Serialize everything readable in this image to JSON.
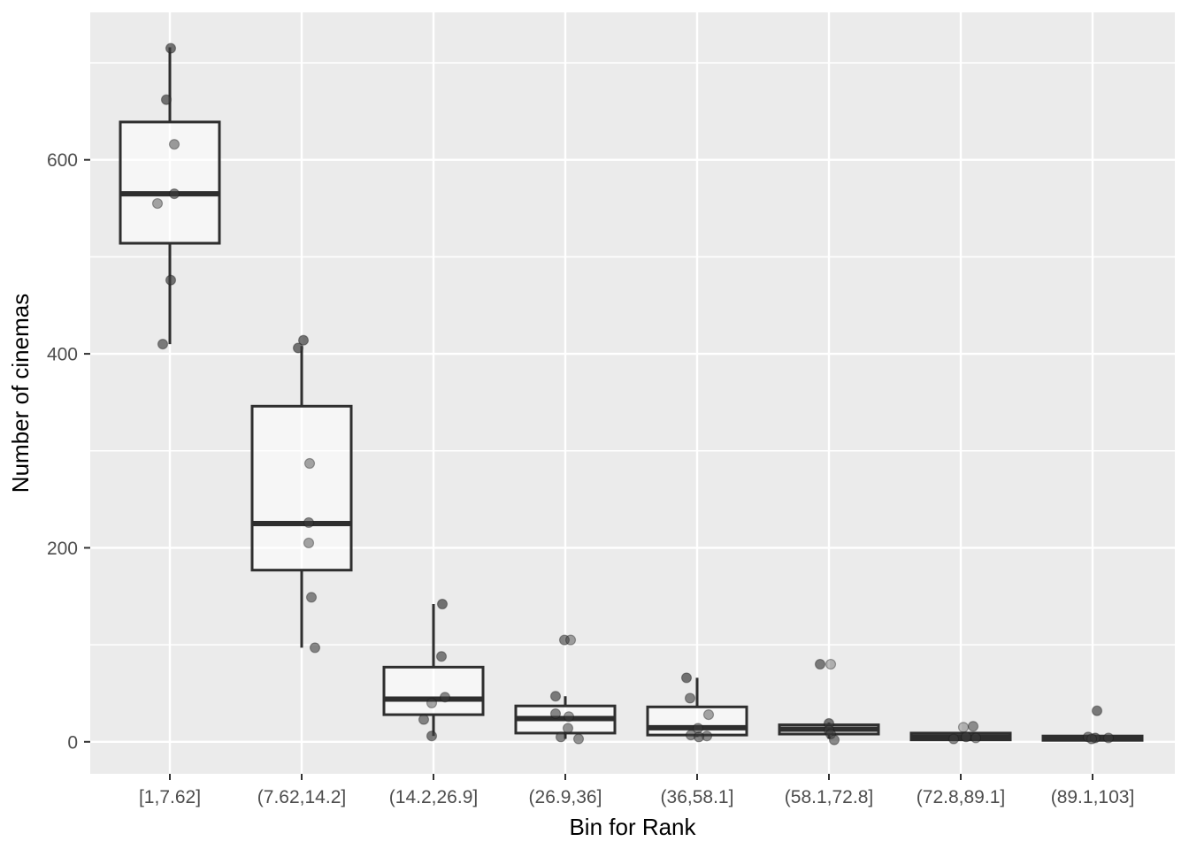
{
  "chart_data": {
    "type": "boxplot",
    "title": "",
    "xlabel": "Bin for Rank",
    "ylabel": "Number of cinemas",
    "categories": [
      "[1,7.62]",
      "(7.62,14.2]",
      "(14.2,26.9]",
      "(26.9,36]",
      "(36,58.1]",
      "(58.1,72.8]",
      "(72.8,89.1]",
      "(89.1,103]"
    ],
    "y_major_ticks": [
      0,
      200,
      400,
      600
    ],
    "y_minor_ticks": [
      100,
      300,
      500,
      700
    ],
    "ylim": [
      -33,
      752
    ],
    "grid": true,
    "legend": false,
    "boxes": [
      {
        "category": "[1,7.62]",
        "whisker_low": 410,
        "q1": 514,
        "median": 565,
        "q3": 639,
        "whisker_high": 716,
        "points": [
          {
            "v": 715,
            "dx": 1,
            "a": 0.7
          },
          {
            "v": 662,
            "dx": -4,
            "a": 0.7
          },
          {
            "v": 616,
            "dx": 5,
            "a": 0.5
          },
          {
            "v": 565,
            "dx": 5,
            "a": 0.65
          },
          {
            "v": 555,
            "dx": -14,
            "a": 0.45
          },
          {
            "v": 476,
            "dx": 1,
            "a": 0.7
          },
          {
            "v": 410,
            "dx": -8,
            "a": 0.65
          }
        ]
      },
      {
        "category": "(7.62,14.2]",
        "whisker_low": 97,
        "q1": 177,
        "median": 225,
        "q3": 346,
        "whisker_high": 408,
        "points": [
          {
            "v": 414,
            "dx": 2,
            "a": 0.7
          },
          {
            "v": 406,
            "dx": -4,
            "a": 0.7
          },
          {
            "v": 287,
            "dx": 9,
            "a": 0.45
          },
          {
            "v": 226,
            "dx": 8,
            "a": 0.6
          },
          {
            "v": 205,
            "dx": 8,
            "a": 0.45
          },
          {
            "v": 149,
            "dx": 11,
            "a": 0.6
          },
          {
            "v": 97,
            "dx": 15,
            "a": 0.6
          }
        ]
      },
      {
        "category": "(14.2,26.9]",
        "whisker_low": 6,
        "q1": 28,
        "median": 44,
        "q3": 77,
        "whisker_high": 142,
        "points": [
          {
            "v": 142,
            "dx": 10,
            "a": 0.7
          },
          {
            "v": 88,
            "dx": 9,
            "a": 0.65
          },
          {
            "v": 46,
            "dx": 13,
            "a": 0.6
          },
          {
            "v": 40,
            "dx": -2,
            "a": 0.45
          },
          {
            "v": 23,
            "dx": -11,
            "a": 0.6
          },
          {
            "v": 6,
            "dx": -2,
            "a": 0.65
          }
        ]
      },
      {
        "category": "(26.9,36]",
        "whisker_low": 3,
        "q1": 9,
        "median": 24,
        "q3": 37,
        "whisker_high": 47,
        "points": [
          {
            "v": 105,
            "dx": -1,
            "a": 0.6
          },
          {
            "v": 105,
            "dx": 6,
            "a": 0.45
          },
          {
            "v": 47,
            "dx": -11,
            "a": 0.65
          },
          {
            "v": 29,
            "dx": -11,
            "a": 0.6
          },
          {
            "v": 26,
            "dx": 4,
            "a": 0.5
          },
          {
            "v": 14,
            "dx": 3,
            "a": 0.55
          },
          {
            "v": 5,
            "dx": -5,
            "a": 0.6
          },
          {
            "v": 3,
            "dx": 15,
            "a": 0.55
          }
        ]
      },
      {
        "category": "(36,58.1]",
        "whisker_low": 5,
        "q1": 7,
        "median": 14.5,
        "q3": 36,
        "whisker_high": 66,
        "points": [
          {
            "v": 66,
            "dx": -12,
            "a": 0.7
          },
          {
            "v": 45,
            "dx": -8,
            "a": 0.6
          },
          {
            "v": 28,
            "dx": 13,
            "a": 0.45
          },
          {
            "v": 14,
            "dx": 1,
            "a": 0.6
          },
          {
            "v": 7,
            "dx": -7,
            "a": 0.55
          },
          {
            "v": 6,
            "dx": 11,
            "a": 0.55
          },
          {
            "v": 5,
            "dx": 2,
            "a": 0.6
          }
        ]
      },
      {
        "category": "(58.1,72.8]",
        "whisker_low": 3,
        "q1": 8,
        "median": 13,
        "q3": 17.5,
        "whisker_high": 20,
        "points": [
          {
            "v": 80,
            "dx": -10,
            "a": 0.65
          },
          {
            "v": 80,
            "dx": 2,
            "a": 0.35
          },
          {
            "v": 19,
            "dx": 0,
            "a": 0.7
          },
          {
            "v": 12,
            "dx": 0,
            "a": 0.6
          },
          {
            "v": 8,
            "dx": 2,
            "a": 0.6
          },
          {
            "v": 2,
            "dx": 6,
            "a": 0.6
          }
        ]
      },
      {
        "category": "(72.8,89.1]",
        "whisker_low": 2,
        "q1": 2,
        "median": 5,
        "q3": 9,
        "whisker_high": 9,
        "points": [
          {
            "v": 15,
            "dx": 3,
            "a": 0.35
          },
          {
            "v": 16,
            "dx": 14,
            "a": 0.55
          },
          {
            "v": 3,
            "dx": -8,
            "a": 0.6
          },
          {
            "v": 5,
            "dx": 6,
            "a": 0.7
          },
          {
            "v": 4,
            "dx": 17,
            "a": 0.5
          }
        ]
      },
      {
        "category": "(89.1,103]",
        "whisker_low": 1.5,
        "q1": 1.5,
        "median": 3.5,
        "q3": 6,
        "whisker_high": 6,
        "points": [
          {
            "v": 32,
            "dx": 5,
            "a": 0.65
          },
          {
            "v": 5,
            "dx": -5,
            "a": 0.6
          },
          {
            "v": 4,
            "dx": 3,
            "a": 0.7
          },
          {
            "v": 4,
            "dx": 18,
            "a": 0.55
          },
          {
            "v": 3,
            "dx": -1,
            "a": 0.6
          }
        ]
      }
    ],
    "colors": {
      "panel_background": "#EBEBEB",
      "grid_line": "#FFFFFF",
      "box_border": "#2E2E2E",
      "box_fill": "rgba(255,255,255,0.55)",
      "median_line": "#2E2E2E",
      "point_fill": "#3C3C3C",
      "tick_mark": "#333333",
      "tick_label": "#4D4D4D",
      "axis_title": "#000000"
    }
  }
}
